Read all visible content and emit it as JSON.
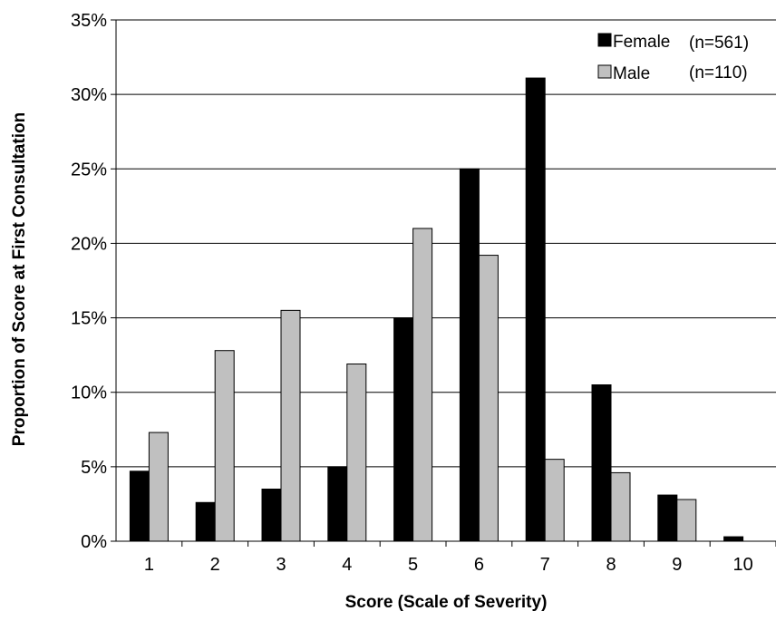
{
  "chart_data": {
    "type": "bar",
    "xlabel": "Score (Scale of Severity)",
    "ylabel": "Proportion of Score at First Consultation",
    "categories": [
      "1",
      "2",
      "3",
      "4",
      "5",
      "6",
      "7",
      "8",
      "9",
      "10"
    ],
    "ylim": [
      0,
      35
    ],
    "yticks": [
      0,
      5,
      10,
      15,
      20,
      25,
      30,
      35
    ],
    "ytick_labels": [
      "0%",
      "5%",
      "10%",
      "15%",
      "20%",
      "25%",
      "30%",
      "35%"
    ],
    "grid": "horizontal",
    "legend_position": "top-right",
    "series": [
      {
        "name": "Female",
        "n_label": "(n=561)",
        "color": "#000000",
        "values": [
          4.7,
          2.6,
          3.5,
          5.0,
          15.0,
          25.0,
          31.1,
          10.5,
          3.1,
          0.3
        ]
      },
      {
        "name": "Male",
        "n_label": "(n=110)",
        "color": "#c0c0c0",
        "values": [
          7.3,
          12.8,
          15.5,
          11.9,
          21.0,
          19.2,
          5.5,
          4.6,
          2.8,
          0
        ]
      }
    ]
  }
}
